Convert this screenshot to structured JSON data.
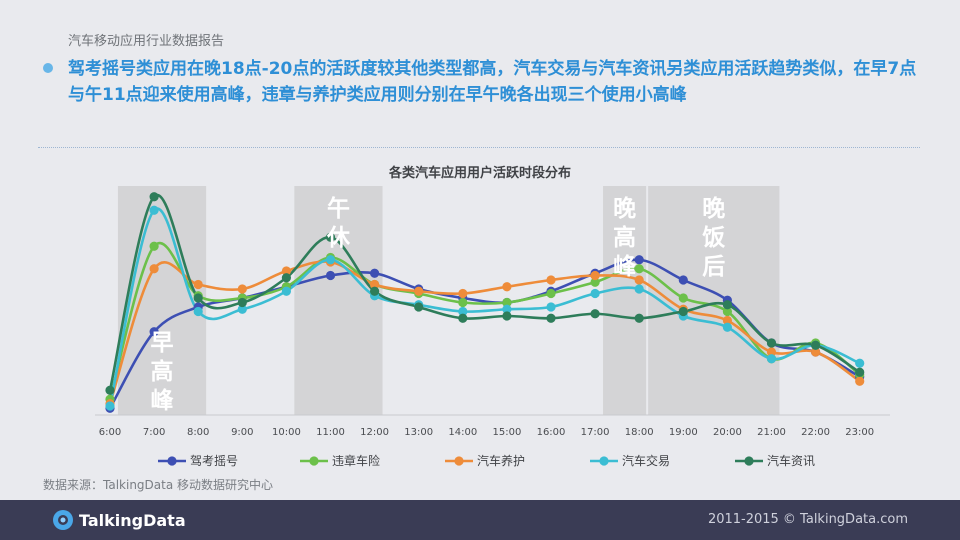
{
  "header": {
    "report_title": "汽车移动应用行业数据报告",
    "headline": "驾考摇号类应用在晚18点-20点的活跃度较其他类型都高，汽车交易与汽车资讯另类应用活跃趋势类似，在早7点与午11点迎来使用高峰，违章与养护类应用则分别在早午晚各出现三个使用小高峰"
  },
  "colors": {
    "accent": "#2e8fd6",
    "bullet": "#68b6e8",
    "band": "#d4d4d6",
    "footer": "#3a3c55"
  },
  "chart_data": {
    "type": "line",
    "title": "各类汽车应用用户活跃时段分布",
    "x": [
      "6:00",
      "7:00",
      "8:00",
      "9:00",
      "10:00",
      "11:00",
      "12:00",
      "13:00",
      "14:00",
      "15:00",
      "16:00",
      "17:00",
      "18:00",
      "19:00",
      "20:00",
      "21:00",
      "22:00",
      "23:00"
    ],
    "xlabel": "",
    "ylabel": "",
    "y_axis_shown": false,
    "ylim": [
      0,
      100
    ],
    "grid": false,
    "legend_position": "bottom",
    "highlight_bands": [
      {
        "label": "早高峰",
        "from": "6:00",
        "to": "8:00"
      },
      {
        "label": "午休",
        "from": "10:00",
        "to": "12:00"
      },
      {
        "label": "晚高峰",
        "from": "17:00",
        "to": "18:00"
      },
      {
        "label": "晚饭后",
        "from": "18:00",
        "to": "21:00"
      }
    ],
    "series": [
      {
        "name": "驾考摇号",
        "color": "#3d4fb3",
        "values": [
          3,
          37,
          48,
          52,
          57,
          62,
          63,
          56,
          52,
          50,
          55,
          63,
          69,
          60,
          51,
          32,
          28,
          17
        ]
      },
      {
        "name": "违章车险",
        "color": "#6cc04a",
        "values": [
          7,
          75,
          53,
          52,
          57,
          70,
          58,
          54,
          50,
          50,
          54,
          59,
          65,
          52,
          46,
          25,
          32,
          18
        ]
      },
      {
        "name": "汽车养护",
        "color": "#ee8c3a",
        "values": [
          5,
          65,
          58,
          56,
          64,
          68,
          58,
          55,
          54,
          57,
          60,
          62,
          60,
          47,
          42,
          28,
          28,
          15
        ]
      },
      {
        "name": "汽车交易",
        "color": "#3bbdd3",
        "values": [
          4,
          91,
          46,
          47,
          55,
          69,
          53,
          49,
          46,
          47,
          48,
          54,
          56,
          44,
          39,
          25,
          31,
          23
        ]
      },
      {
        "name": "汽车资讯",
        "color": "#2e7d5a",
        "values": [
          11,
          97,
          52,
          50,
          61,
          79,
          55,
          48,
          43,
          44,
          43,
          45,
          43,
          46,
          49,
          32,
          31,
          19
        ]
      }
    ]
  },
  "footer": {
    "source": "数据来源：TalkingData 移动数据研究中心",
    "logo_text": "TalkingData",
    "copyright": "2011-2015 © TalkingData.com"
  }
}
